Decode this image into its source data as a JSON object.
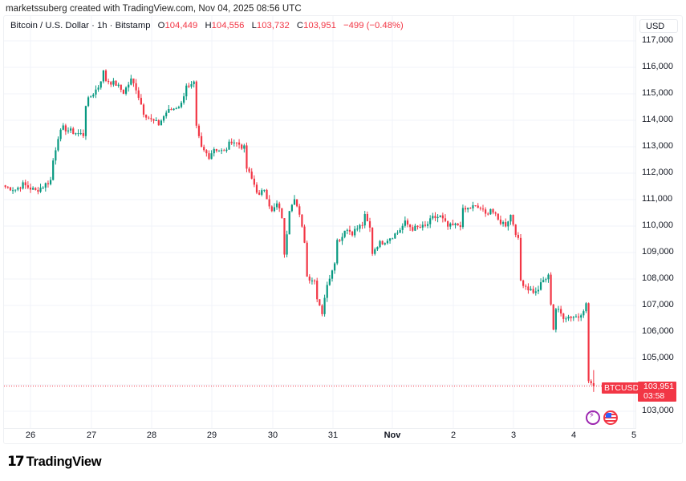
{
  "header": {
    "credit": "marketssuberg created with TradingView.com, Nov 04, 2025 08:56 UTC"
  },
  "legend": {
    "symbol_title": "Bitcoin / U.S. Dollar · 1h · Bitstamp",
    "open_label": "O",
    "open": "104,449",
    "high_label": "H",
    "high": "104,556",
    "low_label": "L",
    "low": "103,732",
    "close_label": "C",
    "close": "103,951",
    "change": "−499 (−0.48%)"
  },
  "price_axis": {
    "currency": "USD",
    "ticks": [
      "117,000",
      "116,000",
      "115,000",
      "114,000",
      "113,000",
      "112,000",
      "111,000",
      "110,000",
      "109,000",
      "108,000",
      "107,000",
      "106,000",
      "105,000",
      "103,000"
    ]
  },
  "time_axis": {
    "ticks": [
      "26",
      "27",
      "28",
      "29",
      "30",
      "31",
      "Nov",
      "2",
      "3",
      "4",
      "5"
    ]
  },
  "last_price": {
    "symbol": "BTCUSD",
    "price": "103,951",
    "countdown": "03:58",
    "color": "#f23645"
  },
  "colors": {
    "up": "#089981",
    "down": "#f23645",
    "grid": "#f0f3fa"
  },
  "branding": {
    "name": "TradingView",
    "mark": "17"
  },
  "icons": [
    "events-lightning-icon",
    "us-flag-icon"
  ],
  "chart_data": {
    "type": "candlestick",
    "title": "Bitcoin / U.S. Dollar · 1h · Bitstamp",
    "xlabel": "",
    "ylabel": "USD",
    "ylim": [
      102500,
      117200
    ],
    "grid": true,
    "interval": "1h",
    "x_ticks": [
      "26",
      "27",
      "28",
      "29",
      "30",
      "31",
      "Nov",
      "2",
      "3",
      "4",
      "5"
    ],
    "y_ticks": [
      103000,
      104000,
      105000,
      106000,
      107000,
      108000,
      109000,
      110000,
      111000,
      112000,
      113000,
      114000,
      115000,
      116000,
      117000
    ],
    "last": {
      "open": 104449,
      "high": 104556,
      "low": 103732,
      "close": 103951,
      "change": -499,
      "change_pct": -0.48
    },
    "close_path": [
      [
        "Oct 25 14:00",
        111480
      ],
      [
        "Oct 25 18:00",
        111390
      ],
      [
        "Oct 25 21:00",
        111570
      ],
      [
        "Oct 26 02:00",
        111330
      ],
      [
        "Oct 26 05:00",
        111510
      ],
      [
        "Oct 26 08:00",
        111730
      ],
      [
        "Oct 26 09:00",
        112480
      ],
      [
        "Oct 26 11:00",
        113390
      ],
      [
        "Oct 26 13:00",
        113700
      ],
      [
        "Oct 26 17:00",
        113550
      ],
      [
        "Oct 26 21:00",
        113450
      ],
      [
        "Oct 26 22:00",
        114610
      ],
      [
        "Oct 27 00:00",
        114910
      ],
      [
        "Oct 27 03:00",
        115270
      ],
      [
        "Oct 27 05:00",
        115820
      ],
      [
        "Oct 27 06:00",
        115520
      ],
      [
        "Oct 27 10:00",
        115360
      ],
      [
        "Oct 27 13:00",
        115060
      ],
      [
        "Oct 27 16:00",
        115520
      ],
      [
        "Oct 27 18:00",
        115210
      ],
      [
        "Oct 27 21:00",
        114300
      ],
      [
        "Oct 28 00:00",
        114000
      ],
      [
        "Oct 28 03:00",
        113850
      ],
      [
        "Oct 28 06:00",
        114300
      ],
      [
        "Oct 28 09:00",
        114450
      ],
      [
        "Oct 28 12:00",
        114610
      ],
      [
        "Oct 28 14:00",
        115360
      ],
      [
        "Oct 28 15:00",
        115210
      ],
      [
        "Oct 28 17:00",
        115360
      ],
      [
        "Oct 28 18:00",
        113700
      ],
      [
        "Oct 28 20:00",
        112940
      ],
      [
        "Oct 28 23:00",
        112640
      ],
      [
        "Oct 29 01:00",
        112940
      ],
      [
        "Oct 29 05:00",
        112790
      ],
      [
        "Oct 29 08:00",
        113240
      ],
      [
        "Oct 29 11:00",
        113090
      ],
      [
        "Oct 29 13:00",
        112940
      ],
      [
        "Oct 29 14:00",
        112180
      ],
      [
        "Oct 29 17:00",
        111570
      ],
      [
        "Oct 29 19:00",
        111120
      ],
      [
        "Oct 29 21:00",
        111420
      ],
      [
        "Oct 30 00:00",
        110520
      ],
      [
        "Oct 30 02:00",
        110820
      ],
      [
        "Oct 30 04:00",
        110360
      ],
      [
        "Oct 30 05:00",
        108850
      ],
      [
        "Oct 30 07:00",
        110670
      ],
      [
        "Oct 30 09:00",
        111120
      ],
      [
        "Oct 30 11:00",
        110360
      ],
      [
        "Oct 30 13:00",
        109450
      ],
      [
        "Oct 30 14:00",
        108090
      ],
      [
        "Oct 30 17:00",
        107940
      ],
      [
        "Oct 30 18:00",
        107330
      ],
      [
        "Oct 30 20:00",
        106730
      ],
      [
        "Oct 30 21:00",
        107330
      ],
      [
        "Oct 30 23:00",
        108090
      ],
      [
        "Oct 31 01:00",
        108700
      ],
      [
        "Oct 31 02:00",
        109450
      ],
      [
        "Oct 31 04:00",
        109610
      ],
      [
        "Oct 31 05:00",
        109910
      ],
      [
        "Oct 31 08:00",
        109760
      ],
      [
        "Oct 31 12:00",
        110060
      ],
      [
        "Oct 31 13:00",
        110360
      ],
      [
        "Oct 31 15:00",
        109910
      ],
      [
        "Oct 31 16:00",
        109000
      ],
      [
        "Oct 31 18:00",
        109300
      ],
      [
        "Oct 31 21:00",
        109450
      ],
      [
        "Nov 01 02:00",
        109760
      ],
      [
        "Nov 01 05:00",
        110120
      ],
      [
        "Nov 01 08:00",
        109910
      ],
      [
        "Nov 01 13:00",
        109970
      ],
      [
        "Nov 01 16:00",
        110300
      ],
      [
        "Nov 01 19:00",
        110360
      ],
      [
        "Nov 01 22:00",
        109970
      ],
      [
        "Nov 02 03:00",
        110060
      ],
      [
        "Nov 02 04:00",
        110580
      ],
      [
        "Nov 02 08:00",
        110730
      ],
      [
        "Nov 02 11:00",
        110670
      ],
      [
        "Nov 02 13:00",
        110420
      ],
      [
        "Nov 02 15:00",
        110670
      ],
      [
        "Nov 02 18:00",
        110210
      ],
      [
        "Nov 02 21:00",
        110060
      ],
      [
        "Nov 02 23:00",
        110420
      ],
      [
        "Nov 03 02:00",
        109450
      ],
      [
        "Nov 03 03:00",
        107940
      ],
      [
        "Nov 03 06:00",
        107640
      ],
      [
        "Nov 03 09:00",
        107480
      ],
      [
        "Nov 03 12:00",
        107940
      ],
      [
        "Nov 03 14:00",
        108090
      ],
      [
        "Nov 03 16:00",
        106120
      ],
      [
        "Nov 03 17:00",
        106880
      ],
      [
        "Nov 03 20:00",
        106580
      ],
      [
        "Nov 04 00:00",
        106580
      ],
      [
        "Nov 04 02:00",
        106580
      ],
      [
        "Nov 04 05:00",
        107030
      ],
      [
        "Nov 04 06:00",
        104150
      ],
      [
        "Nov 04 08:00",
        103951
      ]
    ]
  }
}
